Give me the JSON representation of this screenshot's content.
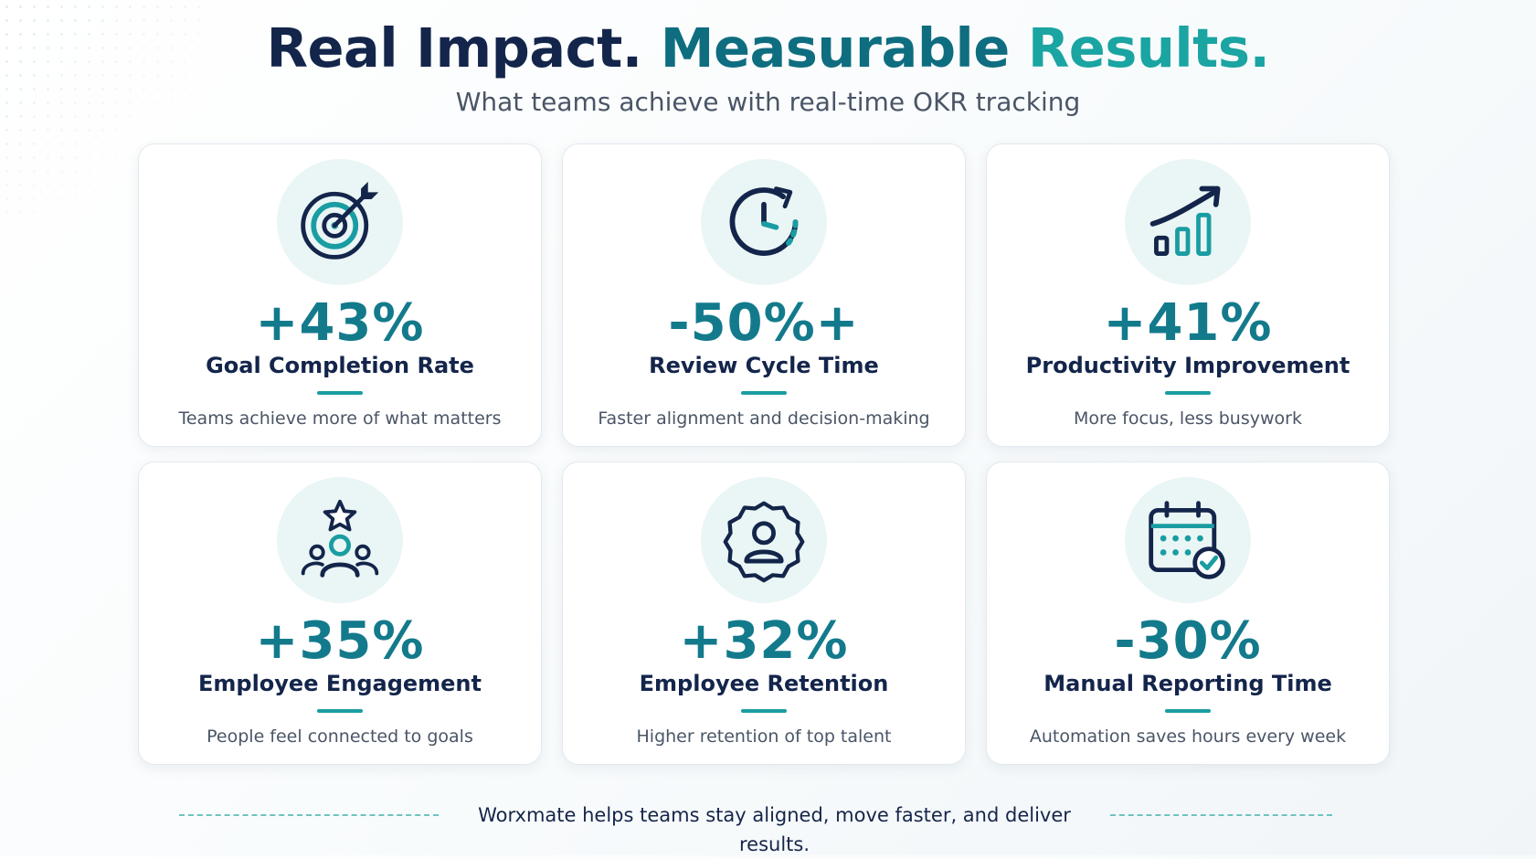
{
  "header": {
    "title_part1": "Real Impact.",
    "title_part2": "Measurable",
    "title_part3": "Results.",
    "subtitle": "What teams achieve with real-time OKR tracking"
  },
  "colors": {
    "navy": "#14254b",
    "teal_dark": "#0f6d80",
    "teal_light": "#1aa4a2",
    "icon_bg": "#eaf6f5"
  },
  "cards": [
    {
      "icon": "target-icon",
      "value": "+43%",
      "label": "Goal Completion Rate",
      "description": "Teams achieve more of what matters"
    },
    {
      "icon": "clock-icon",
      "value": "-50%+",
      "label": "Review Cycle Time",
      "description": "Faster alignment and decision-making"
    },
    {
      "icon": "growth-chart-icon",
      "value": "+41%",
      "label": "Productivity Improvement",
      "description": "More focus, less busywork"
    },
    {
      "icon": "team-star-icon",
      "value": "+35%",
      "label": "Employee Engagement",
      "description": "People feel connected to goals"
    },
    {
      "icon": "user-badge-icon",
      "value": "+32%",
      "label": "Employee Retention",
      "description": "Higher retention of top talent"
    },
    {
      "icon": "calendar-check-icon",
      "value": "-30%",
      "label": "Manual Reporting Time",
      "description": "Automation saves hours every week"
    }
  ],
  "footer": {
    "text": "Worxmate helps teams stay aligned, move faster, and deliver results."
  }
}
